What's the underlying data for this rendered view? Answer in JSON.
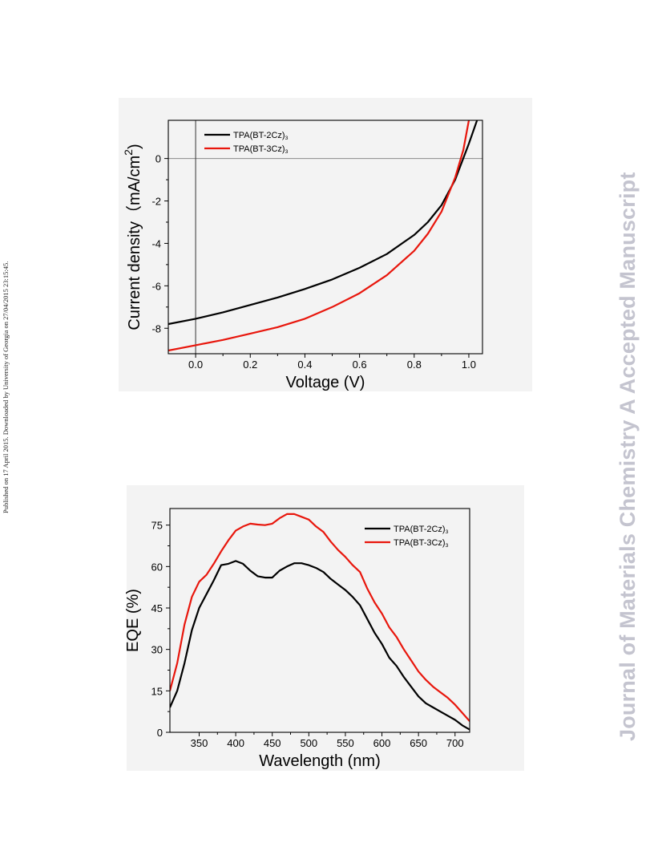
{
  "page": {
    "side_note": "Published on 17 April 2015. Downloaded by University of Georgia on 27/04/2015 23:15:45.",
    "watermark": "Journal of Materials Chemistry A Accepted Manuscript"
  },
  "chart_data": [
    {
      "type": "line",
      "xlabel": "Voltage (V)",
      "ylabel_main": "Current density（mA/cm",
      "ylabel_sup": "2",
      "ylabel_end": ")",
      "xlim": [
        -0.1,
        1.05
      ],
      "ylim": [
        -9.2,
        1.8
      ],
      "xticks": [
        0.0,
        0.2,
        0.4,
        0.6,
        0.8,
        1.0
      ],
      "xtick_labels": [
        "0.0",
        "0.2",
        "0.4",
        "0.6",
        "0.8",
        "1.0"
      ],
      "yticks": [
        0,
        -2,
        -4,
        -6,
        -8
      ],
      "ytick_labels": [
        "0",
        "-2",
        "-4",
        "-6",
        "-8"
      ],
      "reference_lines": {
        "x": 0,
        "y": 0
      },
      "legend_position": "top-left",
      "series": [
        {
          "name": "TPA(BT-2Cz)3",
          "color": "#000000",
          "x": [
            -0.1,
            0.0,
            0.1,
            0.2,
            0.3,
            0.4,
            0.5,
            0.6,
            0.7,
            0.8,
            0.85,
            0.9,
            0.95,
            1.0,
            1.03
          ],
          "y": [
            -7.8,
            -7.55,
            -7.25,
            -6.9,
            -6.55,
            -6.15,
            -5.7,
            -5.15,
            -4.5,
            -3.6,
            -3.0,
            -2.2,
            -1.0,
            0.7,
            1.8
          ]
        },
        {
          "name": "TPA(BT-3Cz)3",
          "color": "#e8160c",
          "x": [
            -0.1,
            0.0,
            0.1,
            0.2,
            0.3,
            0.4,
            0.5,
            0.6,
            0.7,
            0.8,
            0.85,
            0.9,
            0.95,
            0.98,
            1.0
          ],
          "y": [
            -9.05,
            -8.8,
            -8.55,
            -8.25,
            -7.95,
            -7.55,
            -7.0,
            -6.35,
            -5.5,
            -4.35,
            -3.55,
            -2.5,
            -0.9,
            0.4,
            1.8
          ]
        }
      ]
    },
    {
      "type": "line",
      "xlabel": "Wavelength (nm)",
      "ylabel": "EQE (%)",
      "xlim": [
        310,
        720
      ],
      "ylim": [
        0,
        81
      ],
      "xticks": [
        350,
        400,
        450,
        500,
        550,
        600,
        650,
        700
      ],
      "xtick_labels": [
        "350",
        "400",
        "450",
        "500",
        "550",
        "600",
        "650",
        "700"
      ],
      "yticks": [
        0,
        15,
        30,
        45,
        60,
        75
      ],
      "ytick_labels": [
        "0",
        "15",
        "30",
        "45",
        "60",
        "75"
      ],
      "legend_position": "top-right",
      "series": [
        {
          "name": "TPA(BT-2Cz)3",
          "color": "#000000",
          "x": [
            310,
            320,
            330,
            340,
            350,
            360,
            370,
            380,
            390,
            400,
            410,
            420,
            430,
            440,
            450,
            460,
            470,
            480,
            490,
            500,
            510,
            520,
            530,
            540,
            550,
            560,
            570,
            580,
            590,
            600,
            610,
            620,
            630,
            640,
            650,
            660,
            670,
            680,
            690,
            700,
            710,
            720
          ],
          "y": [
            9,
            15,
            25,
            37,
            45,
            50,
            55,
            60.5,
            61,
            62,
            61,
            58.5,
            56.5,
            56,
            56,
            58.5,
            60,
            61.2,
            61.2,
            60.5,
            59.5,
            58,
            55.5,
            53.5,
            51.5,
            49,
            46,
            41,
            36,
            32,
            27,
            24,
            20,
            16.5,
            13,
            10.5,
            9,
            7.5,
            6,
            4.5,
            2.5,
            1
          ]
        },
        {
          "name": "TPA(BT-3Cz)3",
          "color": "#e8160c",
          "x": [
            310,
            320,
            330,
            340,
            350,
            360,
            370,
            380,
            390,
            400,
            410,
            420,
            430,
            440,
            450,
            460,
            470,
            480,
            490,
            500,
            510,
            520,
            530,
            540,
            550,
            560,
            570,
            580,
            590,
            600,
            610,
            620,
            630,
            640,
            650,
            660,
            670,
            680,
            690,
            700,
            710,
            720
          ],
          "y": [
            15,
            25,
            39,
            49,
            54.5,
            57,
            61,
            65.5,
            69.5,
            73,
            74.5,
            75.5,
            75.2,
            75,
            75.5,
            77.5,
            79,
            79,
            78,
            77,
            74.5,
            72.5,
            69,
            66,
            63.5,
            60.5,
            58,
            52,
            47,
            43,
            38,
            34.5,
            30,
            26,
            22,
            19,
            16.5,
            14.5,
            12.5,
            10,
            7,
            4
          ]
        }
      ]
    }
  ]
}
